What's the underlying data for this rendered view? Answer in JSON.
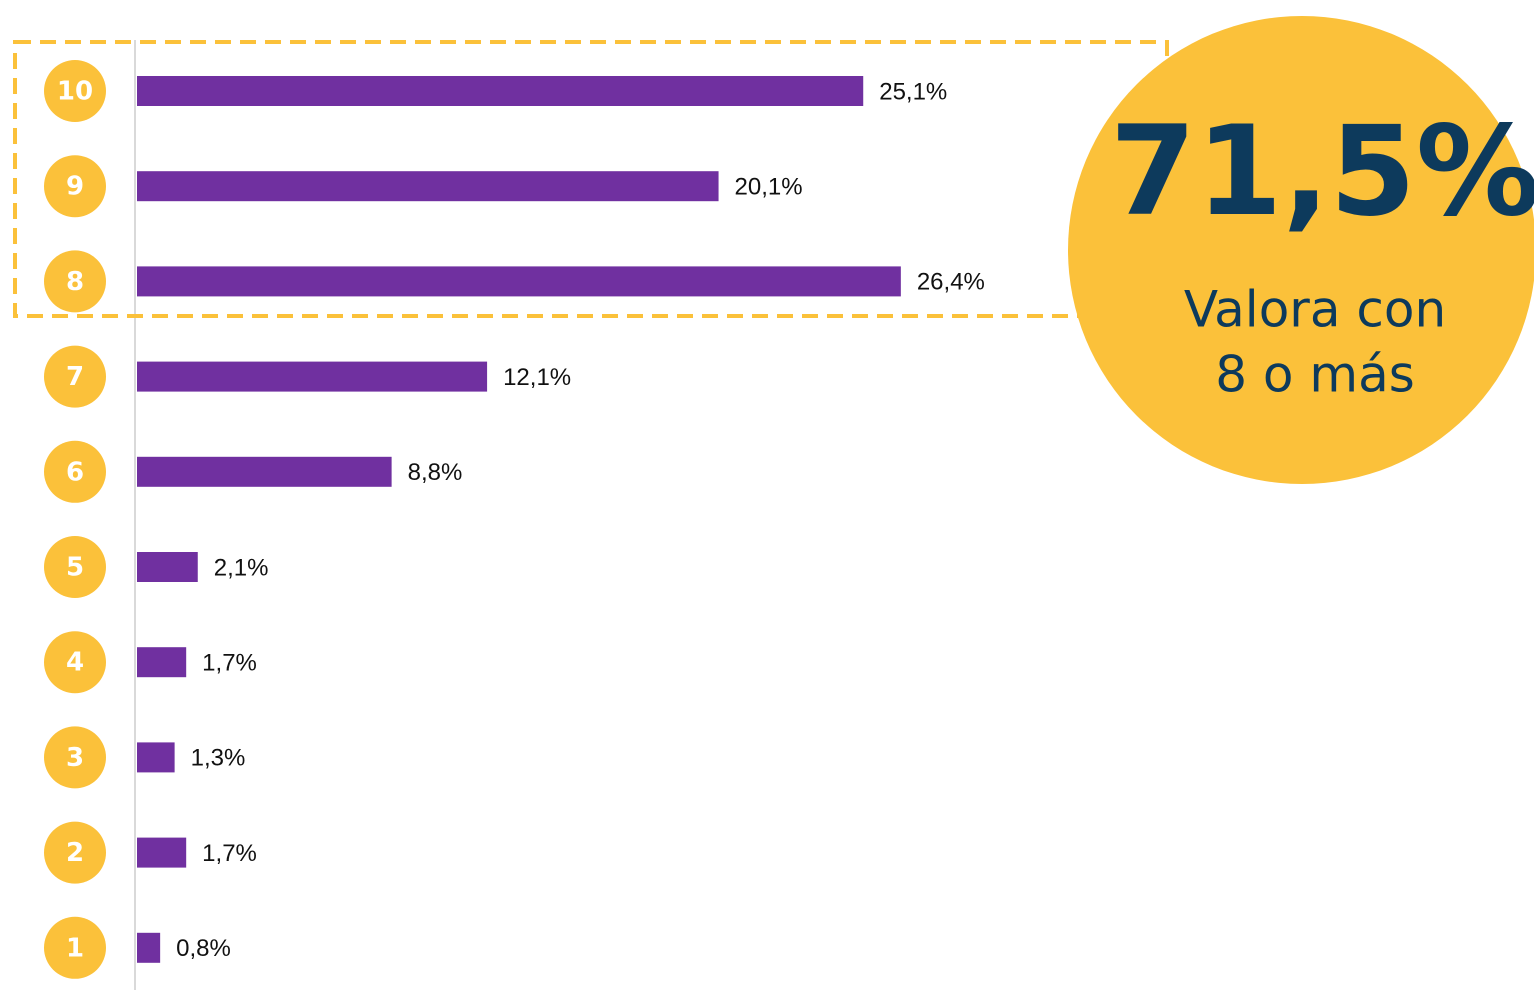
{
  "chart_data": {
    "type": "barh",
    "categories": [
      "10",
      "9",
      "8",
      "7",
      "6",
      "5",
      "4",
      "3",
      "2",
      "1"
    ],
    "values": [
      25.1,
      20.1,
      26.4,
      12.1,
      8.8,
      2.1,
      1.7,
      1.3,
      1.7,
      0.8
    ],
    "value_labels": [
      "25,1%",
      "20,1%",
      "26,4%",
      "12,1%",
      "8,8%",
      "2,1%",
      "1,7%",
      "1,3%",
      "1,7%",
      "0,8%"
    ],
    "color": "#7030a0",
    "category_color": "#fbc13a",
    "xlim": [
      0,
      30
    ],
    "annotation": {
      "value": "71,5%",
      "text": [
        "Valora con",
        "8 o más"
      ]
    }
  }
}
